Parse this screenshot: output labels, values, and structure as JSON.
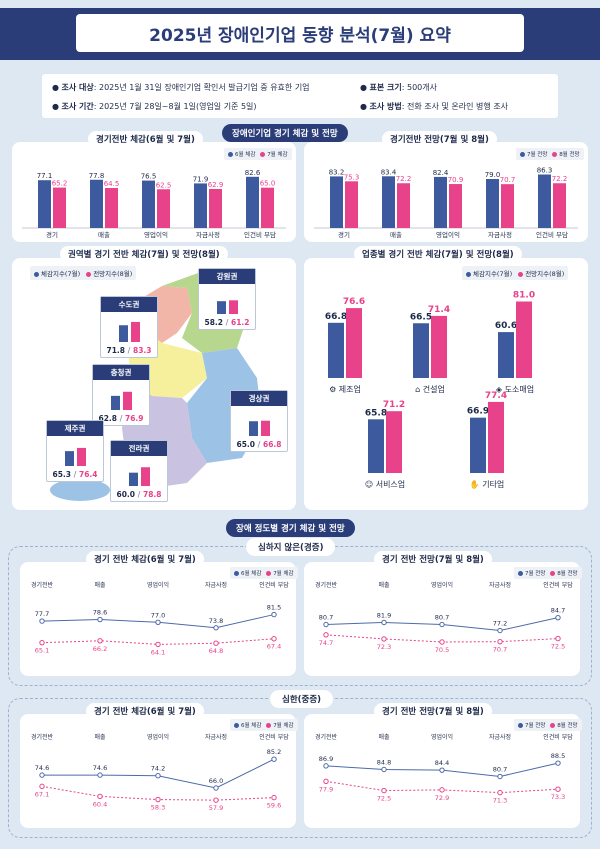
{
  "title": "2025년 장애인기업 동향 분석(7월) 요약",
  "info": {
    "target_label": "조사 대상",
    "target_value": ": 2025년 1월 31일 장애인기업 확인서 발급기업 중 유효한 기업",
    "sample_label": "표본 크기",
    "sample_value": ": 500개사",
    "period_label": "조사 기간",
    "period_value": ": 2025년 7월 28일~8월 1일(영업일 기준 5일)",
    "method_label": "조사 방법",
    "method_value": ": 전화 조사 및 온라인 병행 조사"
  },
  "section1_title": "장애인기업 경기 체감 및 전망",
  "colors": {
    "blue": "#3d5a9e",
    "pink": "#e8428a",
    "navy": "#2a3d78"
  },
  "chart_data": [
    {
      "id": "overall_feel",
      "type": "bar",
      "title": "경기전반 체감(6월 및 7월)",
      "categories": [
        "경기",
        "매출",
        "영업이익",
        "자금사정",
        "인건비 부담"
      ],
      "series": [
        {
          "name": "6월 체감",
          "values": [
            77.1,
            77.8,
            76.5,
            71.9,
            82.6
          ]
        },
        {
          "name": "7월 체감",
          "values": [
            65.2,
            64.5,
            62.5,
            62.9,
            65.0
          ]
        }
      ],
      "ylim": [
        0,
        100
      ]
    },
    {
      "id": "overall_outlook",
      "type": "bar",
      "title": "경기전반 전망(7월 및 8월)",
      "categories": [
        "경기",
        "매출",
        "영업이익",
        "자금사정",
        "인건비 부담"
      ],
      "series": [
        {
          "name": "7월 전망",
          "values": [
            83.2,
            83.4,
            82.4,
            79.0,
            86.3
          ]
        },
        {
          "name": "8월 전망",
          "values": [
            75.3,
            72.2,
            70.9,
            70.7,
            72.2
          ]
        }
      ],
      "ylim": [
        0,
        100
      ]
    },
    {
      "id": "regional",
      "type": "bar",
      "title": "권역별 경기 전반 체감(7월) 및 전망(8월)",
      "categories": [
        "수도권",
        "강원권",
        "충청권",
        "경상권",
        "제주권",
        "전라권"
      ],
      "series": [
        {
          "name": "체감지수(7월)",
          "values": [
            71.8,
            58.2,
            62.8,
            65.0,
            65.3,
            60.0
          ]
        },
        {
          "name": "전망지수(8월)",
          "values": [
            83.3,
            61.2,
            76.9,
            66.8,
            76.4,
            78.8
          ]
        }
      ]
    },
    {
      "id": "industry",
      "type": "bar",
      "title": "업종별 경기 전반 체감(7월) 및 전망(8월)",
      "categories": [
        "제조업",
        "건설업",
        "도소매업",
        "서비스업",
        "기타업"
      ],
      "series": [
        {
          "name": "체감지수(7월)",
          "values": [
            66.8,
            66.5,
            60.6,
            65.8,
            66.9
          ]
        },
        {
          "name": "전망지수(8월)",
          "values": [
            76.6,
            71.4,
            81.0,
            71.2,
            77.4
          ]
        }
      ],
      "ylim": [
        0,
        90
      ]
    },
    {
      "id": "mild_feel",
      "type": "line",
      "title": "경기 전반 체감(6월 및 7월)",
      "categories": [
        "경기전반",
        "매출",
        "영업이익",
        "자금사정",
        "인건비 부담"
      ],
      "series": [
        {
          "name": "6월 체감",
          "values": [
            77.7,
            78.6,
            77.0,
            73.8,
            81.5
          ]
        },
        {
          "name": "7월 체감",
          "values": [
            65.1,
            66.2,
            64.1,
            64.8,
            67.4
          ]
        }
      ],
      "ylim": [
        55,
        90
      ]
    },
    {
      "id": "mild_outlook",
      "type": "line",
      "title": "경기 전반 전망(7월 및 8월)",
      "categories": [
        "경기전반",
        "매출",
        "영업이익",
        "자금사정",
        "인건비 부담"
      ],
      "series": [
        {
          "name": "7월 전망",
          "values": [
            80.7,
            81.9,
            80.7,
            77.2,
            84.7
          ]
        },
        {
          "name": "8월 전망",
          "values": [
            74.7,
            72.3,
            70.5,
            70.7,
            72.5
          ]
        }
      ],
      "ylim": [
        60,
        95
      ]
    },
    {
      "id": "severe_feel",
      "type": "line",
      "title": "경기 전반 체감(6월 및 7월)",
      "categories": [
        "경기전반",
        "매출",
        "영업이익",
        "자금사정",
        "인건비 부담"
      ],
      "series": [
        {
          "name": "6월 체감",
          "values": [
            74.6,
            74.6,
            74.2,
            66.0,
            85.2
          ]
        },
        {
          "name": "7월 체감",
          "values": [
            67.1,
            60.4,
            58.3,
            57.9,
            59.6
          ]
        }
      ],
      "ylim": [
        50,
        90
      ]
    },
    {
      "id": "severe_outlook",
      "type": "line",
      "title": "경기 전반 전망(7월 및 8월)",
      "categories": [
        "경기전반",
        "매출",
        "영업이익",
        "자금사정",
        "인건비 부담"
      ],
      "series": [
        {
          "name": "7월 전망",
          "values": [
            86.9,
            84.8,
            84.4,
            80.7,
            88.5
          ]
        },
        {
          "name": "8월 전망",
          "values": [
            77.9,
            72.5,
            72.9,
            71.3,
            73.3
          ]
        }
      ],
      "ylim": [
        60,
        95
      ]
    }
  ],
  "section2_title": "장애 정도별 경기 체감 및 전망",
  "mild_label": "심하지 않은(경증)",
  "severe_label": "심한(중증)"
}
